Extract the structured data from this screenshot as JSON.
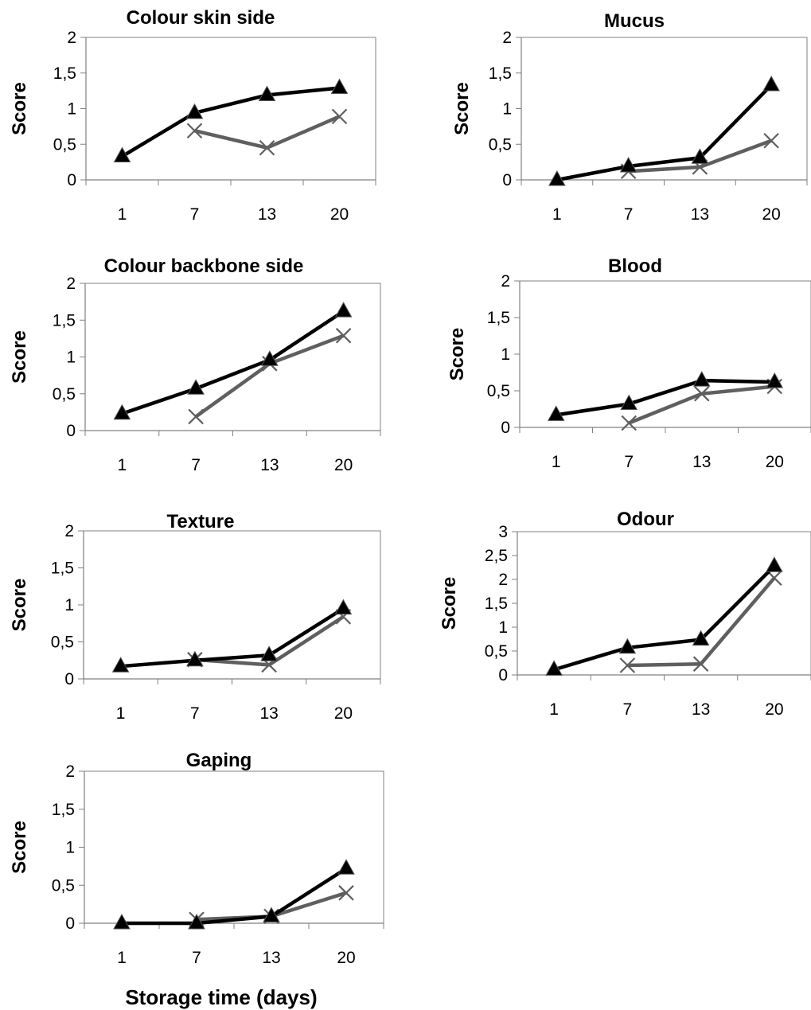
{
  "figure": {
    "xlabel": "Storage time (days)"
  },
  "chart_data": [
    {
      "type": "line",
      "title": "Colour skin side",
      "xlabel": "",
      "ylabel": "Score",
      "categories": [
        "1",
        "7",
        "13",
        "20"
      ],
      "yticks": [
        "0",
        "0,5",
        "1",
        "1,5",
        "2"
      ],
      "ylim": [
        0,
        2
      ],
      "series": [
        {
          "marker": "triangle",
          "color": "#000000",
          "values": [
            0.33,
            0.94,
            1.19,
            1.29
          ]
        },
        {
          "marker": "x",
          "color": "#5f5f5f",
          "values": [
            null,
            0.69,
            0.45,
            0.89
          ]
        }
      ]
    },
    {
      "type": "line",
      "title": "Mucus",
      "xlabel": "",
      "ylabel": "Score",
      "categories": [
        "1",
        "7",
        "13",
        "20"
      ],
      "yticks": [
        "0",
        "0,5",
        "1",
        "1,5",
        "2"
      ],
      "ylim": [
        0,
        2
      ],
      "series": [
        {
          "marker": "triangle",
          "color": "#000000",
          "values": [
            0.0,
            0.19,
            0.31,
            1.33
          ]
        },
        {
          "marker": "x",
          "color": "#5f5f5f",
          "values": [
            null,
            0.12,
            0.18,
            0.55
          ]
        }
      ]
    },
    {
      "type": "line",
      "title": "Colour backbone side",
      "xlabel": "",
      "ylabel": "Score",
      "categories": [
        "1",
        "7",
        "13",
        "20"
      ],
      "yticks": [
        "0",
        "0,5",
        "1",
        "1,5",
        "2"
      ],
      "ylim": [
        0,
        2
      ],
      "series": [
        {
          "marker": "triangle",
          "color": "#000000",
          "values": [
            0.23,
            0.57,
            0.96,
            1.62
          ]
        },
        {
          "marker": "x",
          "color": "#5f5f5f",
          "values": [
            null,
            0.19,
            0.91,
            1.29
          ]
        }
      ]
    },
    {
      "type": "line",
      "title": "Blood",
      "xlabel": "",
      "ylabel": "Score",
      "categories": [
        "1",
        "7",
        "13",
        "20"
      ],
      "yticks": [
        "0",
        "0,5",
        "1",
        "1,5",
        "2"
      ],
      "ylim": [
        0,
        2
      ],
      "series": [
        {
          "marker": "triangle",
          "color": "#000000",
          "values": [
            0.17,
            0.32,
            0.64,
            0.62
          ]
        },
        {
          "marker": "x",
          "color": "#5f5f5f",
          "values": [
            null,
            0.06,
            0.46,
            0.56
          ]
        }
      ]
    },
    {
      "type": "line",
      "title": "Texture",
      "xlabel": "",
      "ylabel": "Score",
      "categories": [
        "1",
        "7",
        "13",
        "20"
      ],
      "yticks": [
        "0",
        "0,5",
        "1",
        "1,5",
        "2"
      ],
      "ylim": [
        0,
        2
      ],
      "series": [
        {
          "marker": "triangle",
          "color": "#000000",
          "values": [
            0.17,
            0.25,
            0.32,
            0.95
          ]
        },
        {
          "marker": "x",
          "color": "#5f5f5f",
          "values": [
            null,
            0.26,
            0.19,
            0.84
          ]
        }
      ]
    },
    {
      "type": "line",
      "title": "Odour",
      "xlabel": "",
      "ylabel": "Score",
      "categories": [
        "1",
        "7",
        "13",
        "20"
      ],
      "yticks": [
        "0",
        "0,5",
        "1",
        "1,5",
        "2",
        "2,5",
        "3"
      ],
      "ylim": [
        0,
        3
      ],
      "series": [
        {
          "marker": "triangle",
          "color": "#000000",
          "values": [
            0.11,
            0.57,
            0.74,
            2.28
          ]
        },
        {
          "marker": "x",
          "color": "#5f5f5f",
          "values": [
            null,
            0.2,
            0.23,
            2.03
          ]
        }
      ]
    },
    {
      "type": "line",
      "title": "Gaping",
      "xlabel": "",
      "ylabel": "Score",
      "categories": [
        "1",
        "7",
        "13",
        "20"
      ],
      "yticks": [
        "0",
        "0,5",
        "1",
        "1,5",
        "2"
      ],
      "ylim": [
        0,
        2
      ],
      "series": [
        {
          "marker": "triangle",
          "color": "#000000",
          "values": [
            0.0,
            0.0,
            0.09,
            0.72
          ]
        },
        {
          "marker": "x",
          "color": "#5f5f5f",
          "values": [
            null,
            0.05,
            0.09,
            0.4
          ]
        }
      ]
    }
  ]
}
